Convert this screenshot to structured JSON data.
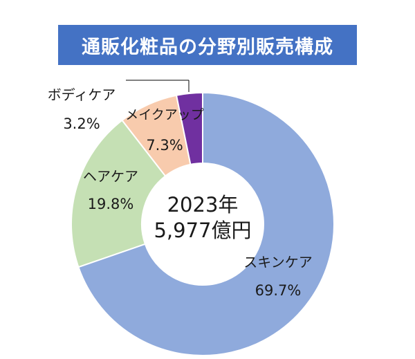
{
  "title": "通販化粧品の分野別販売構成",
  "chart_data": {
    "type": "pie",
    "variant": "donut",
    "title": "通販化粧品の分野別販売構成",
    "center_label": [
      "2023年",
      "5,977億円"
    ],
    "slices": [
      {
        "name": "スキンケア",
        "value": 69.7,
        "label": "69.7%",
        "color": "#8faadc"
      },
      {
        "name": "ヘアケア",
        "value": 19.8,
        "label": "19.8%",
        "color": "#c5e0b4"
      },
      {
        "name": "メイクアップ",
        "value": 7.3,
        "label": "7.3%",
        "color": "#f8cbad"
      },
      {
        "name": "ボディケア",
        "value": 3.2,
        "label": "3.2%",
        "color": "#7030a0"
      }
    ],
    "start_angle": "12 o'clock",
    "direction": "clockwise",
    "legend": "none"
  }
}
